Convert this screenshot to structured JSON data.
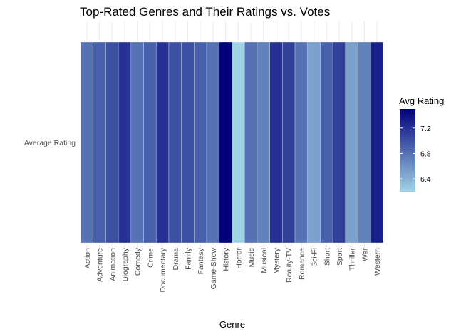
{
  "chart_data": {
    "type": "heatmap",
    "title": "Top-Rated Genres and Their Ratings vs. Votes",
    "xlabel": "Genre",
    "ylabel": "",
    "y_categories": [
      "Average Rating"
    ],
    "categories": [
      "Action",
      "Adventure",
      "Animation",
      "Biography",
      "Comedy",
      "Crime",
      "Documentary",
      "Drama",
      "Family",
      "Fantasy",
      "Game-Show",
      "History",
      "Horror",
      "Music",
      "Musical",
      "Mystery",
      "Reality-TV",
      "Romance",
      "Sci-Fi",
      "Short",
      "Sport",
      "Thriller",
      "War",
      "Western"
    ],
    "values": [
      6.8,
      6.9,
      7.0,
      7.2,
      6.8,
      6.9,
      7.2,
      7.0,
      7.0,
      6.9,
      6.8,
      7.5,
      6.2,
      6.8,
      6.7,
      7.2,
      7.1,
      6.8,
      6.5,
      6.9,
      7.1,
      6.5,
      6.7,
      7.3
    ],
    "legend": {
      "title": "Avg Rating",
      "ticks": [
        "7.2",
        "6.8",
        "6.4"
      ],
      "tick_values": [
        7.2,
        6.8,
        6.4
      ],
      "min": 6.2,
      "max": 7.5,
      "low_color": "#9fd3e6",
      "high_color": "#00007a",
      "position": "right"
    },
    "grid": true
  }
}
